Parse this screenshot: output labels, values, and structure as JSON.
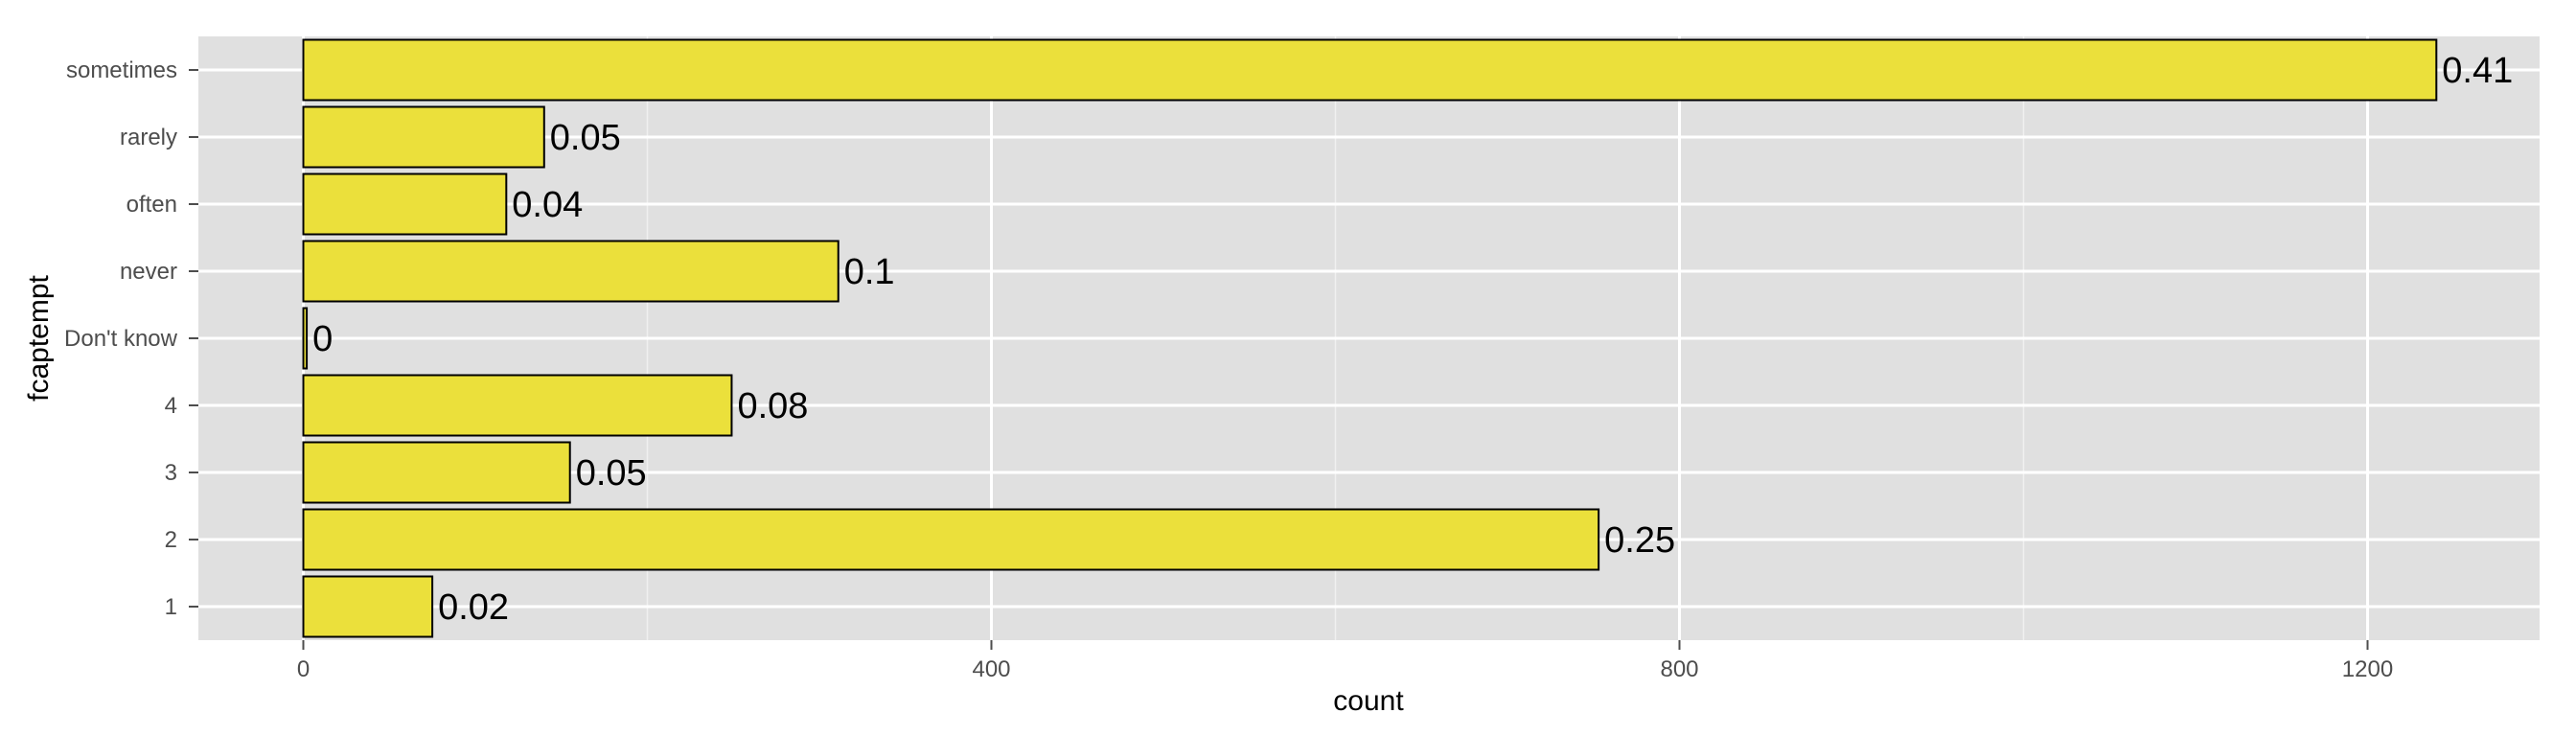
{
  "chart_data": {
    "type": "bar",
    "orientation": "horizontal",
    "categories": [
      "1",
      "2",
      "3",
      "4",
      "Don't know",
      "never",
      "often",
      "rarely",
      "sometimes"
    ],
    "values": [
      75,
      753,
      155,
      249,
      2,
      311,
      118,
      140,
      1240
    ],
    "data_labels": [
      "0.02",
      "0.25",
      "0.05",
      "0.08",
      "0",
      "0.1",
      "0.04",
      "0.05",
      "0.41"
    ],
    "xlabel": "count",
    "ylabel": "fcaptempt",
    "x_ticks": [
      0,
      400,
      800,
      1200
    ],
    "x_tick_labels": [
      "0",
      "400",
      "800",
      "1200"
    ],
    "xlim": [
      -61,
      1300
    ],
    "grid": true,
    "bar_color": "#ebe03b",
    "bar_outline_color": "#000000",
    "panel_color": "#e0e0e0",
    "grid_color": "#ffffff"
  }
}
